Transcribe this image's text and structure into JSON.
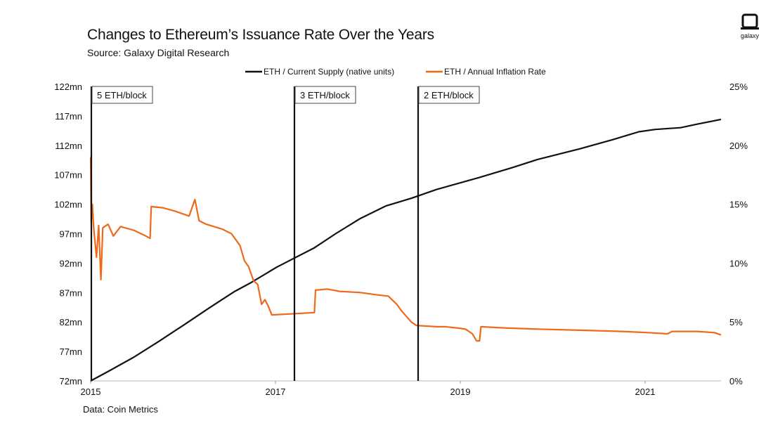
{
  "header": {
    "title": "Changes to Ethereum’s Issuance Rate Over the Years",
    "subtitle": "Source: Galaxy Digital Research"
  },
  "footer": {
    "source_note": "Data: Coin Metrics"
  },
  "brand": {
    "logo_text": "galaxy",
    "icon": "galaxy-logo-icon"
  },
  "chart_data": {
    "type": "line",
    "title": "Changes to Ethereum’s Issuance Rate Over the Years",
    "xlabel": "",
    "ylabel": "",
    "legend_position": "top",
    "grid": false,
    "x_ticks": [
      "2015",
      "2017",
      "2019",
      "2021"
    ],
    "x_range": [
      "2015-07-30",
      "2021-10-25"
    ],
    "y_left": {
      "range": [
        72,
        122
      ],
      "ticks": [
        "72mn",
        "77mn",
        "82mn",
        "87mn",
        "92mn",
        "97mn",
        "102mn",
        "107mn",
        "112mn",
        "117mn",
        "122mn"
      ]
    },
    "y_right": {
      "range": [
        0,
        25
      ],
      "ticks": [
        "0%",
        "5%",
        "10%",
        "15%",
        "20%",
        "25%"
      ]
    },
    "series": [
      {
        "name": "ETH / Current Supply (native units)",
        "axis": "left",
        "color": "#111111",
        "points": [
          [
            "2015-07-30",
            72.0
          ],
          [
            "2015-10-01",
            73.6
          ],
          [
            "2016-01-01",
            76.0
          ],
          [
            "2016-04-01",
            78.7
          ],
          [
            "2016-07-01",
            81.5
          ],
          [
            "2016-10-01",
            84.4
          ],
          [
            "2017-01-01",
            87.2
          ],
          [
            "2017-03-01",
            88.7
          ],
          [
            "2017-06-01",
            91.3
          ],
          [
            "2017-10-16",
            94.6
          ],
          [
            "2018-01-01",
            97.0
          ],
          [
            "2018-04-01",
            99.6
          ],
          [
            "2018-07-01",
            101.7
          ],
          [
            "2018-10-01",
            103.0
          ],
          [
            "2019-01-01",
            104.5
          ],
          [
            "2019-06-01",
            106.5
          ],
          [
            "2019-10-01",
            108.2
          ],
          [
            "2020-01-01",
            109.6
          ],
          [
            "2020-06-01",
            111.4
          ],
          [
            "2020-10-01",
            113.0
          ],
          [
            "2021-01-01",
            114.3
          ],
          [
            "2021-03-01",
            114.7
          ],
          [
            "2021-06-01",
            115.0
          ],
          [
            "2021-08-01",
            115.6
          ],
          [
            "2021-10-25",
            116.4
          ]
        ]
      },
      {
        "name": "ETH / Annual Inflation Rate",
        "axis": "right",
        "color": "#ee6a1a",
        "points": [
          [
            "2015-07-30",
            19.0
          ],
          [
            "2015-08-01",
            13.5
          ],
          [
            "2015-08-05",
            15.0
          ],
          [
            "2015-08-10",
            13.0
          ],
          [
            "2015-08-20",
            10.5
          ],
          [
            "2015-08-28",
            13.2
          ],
          [
            "2015-09-05",
            8.6
          ],
          [
            "2015-09-12",
            13.0
          ],
          [
            "2015-10-01",
            13.3
          ],
          [
            "2015-10-20",
            12.3
          ],
          [
            "2015-11-15",
            13.1
          ],
          [
            "2016-01-01",
            12.8
          ],
          [
            "2016-02-15",
            12.3
          ],
          [
            "2016-03-01",
            12.1
          ],
          [
            "2016-03-05",
            14.8
          ],
          [
            "2016-04-15",
            14.7
          ],
          [
            "2016-06-01",
            14.4
          ],
          [
            "2016-07-20",
            14.0
          ],
          [
            "2016-08-10",
            15.4
          ],
          [
            "2016-08-25",
            13.6
          ],
          [
            "2016-09-20",
            13.3
          ],
          [
            "2016-11-15",
            12.9
          ],
          [
            "2016-12-20",
            12.5
          ],
          [
            "2017-01-20",
            11.5
          ],
          [
            "2017-02-05",
            10.2
          ],
          [
            "2017-02-20",
            9.7
          ],
          [
            "2017-03-10",
            8.5
          ],
          [
            "2017-03-25",
            8.2
          ],
          [
            "2017-04-08",
            6.5
          ],
          [
            "2017-04-20",
            6.9
          ],
          [
            "2017-05-01",
            6.4
          ],
          [
            "2017-05-15",
            5.6
          ],
          [
            "2017-10-16",
            5.8
          ],
          [
            "2017-10-20",
            7.7
          ],
          [
            "2017-12-01",
            7.8
          ],
          [
            "2018-01-15",
            7.6
          ],
          [
            "2018-04-01",
            7.5
          ],
          [
            "2018-06-01",
            7.3
          ],
          [
            "2018-07-10",
            7.2
          ],
          [
            "2018-08-10",
            6.5
          ],
          [
            "2018-08-25",
            6.0
          ],
          [
            "2018-10-01",
            5.0
          ],
          [
            "2018-10-20",
            4.7
          ],
          [
            "2019-01-01",
            4.6
          ],
          [
            "2019-02-01",
            4.6
          ],
          [
            "2019-03-15",
            4.5
          ],
          [
            "2019-04-15",
            4.4
          ],
          [
            "2019-05-10",
            4.0
          ],
          [
            "2019-05-25",
            3.4
          ],
          [
            "2019-06-05",
            3.4
          ],
          [
            "2019-06-10",
            4.6
          ],
          [
            "2019-09-01",
            4.5
          ],
          [
            "2020-01-01",
            4.4
          ],
          [
            "2020-06-01",
            4.3
          ],
          [
            "2020-11-01",
            4.2
          ],
          [
            "2021-02-01",
            4.1
          ],
          [
            "2021-04-15",
            4.0
          ],
          [
            "2021-05-01",
            4.2
          ],
          [
            "2021-08-01",
            4.2
          ],
          [
            "2021-10-01",
            4.1
          ],
          [
            "2021-10-25",
            3.9
          ]
        ]
      }
    ],
    "annotations": [
      {
        "label": "5 ETH/block",
        "date": "2015-07-30"
      },
      {
        "label": "3 ETH/block",
        "date": "2017-10-16"
      },
      {
        "label": "2 ETH/block",
        "date": "2019-02-28"
      }
    ]
  }
}
